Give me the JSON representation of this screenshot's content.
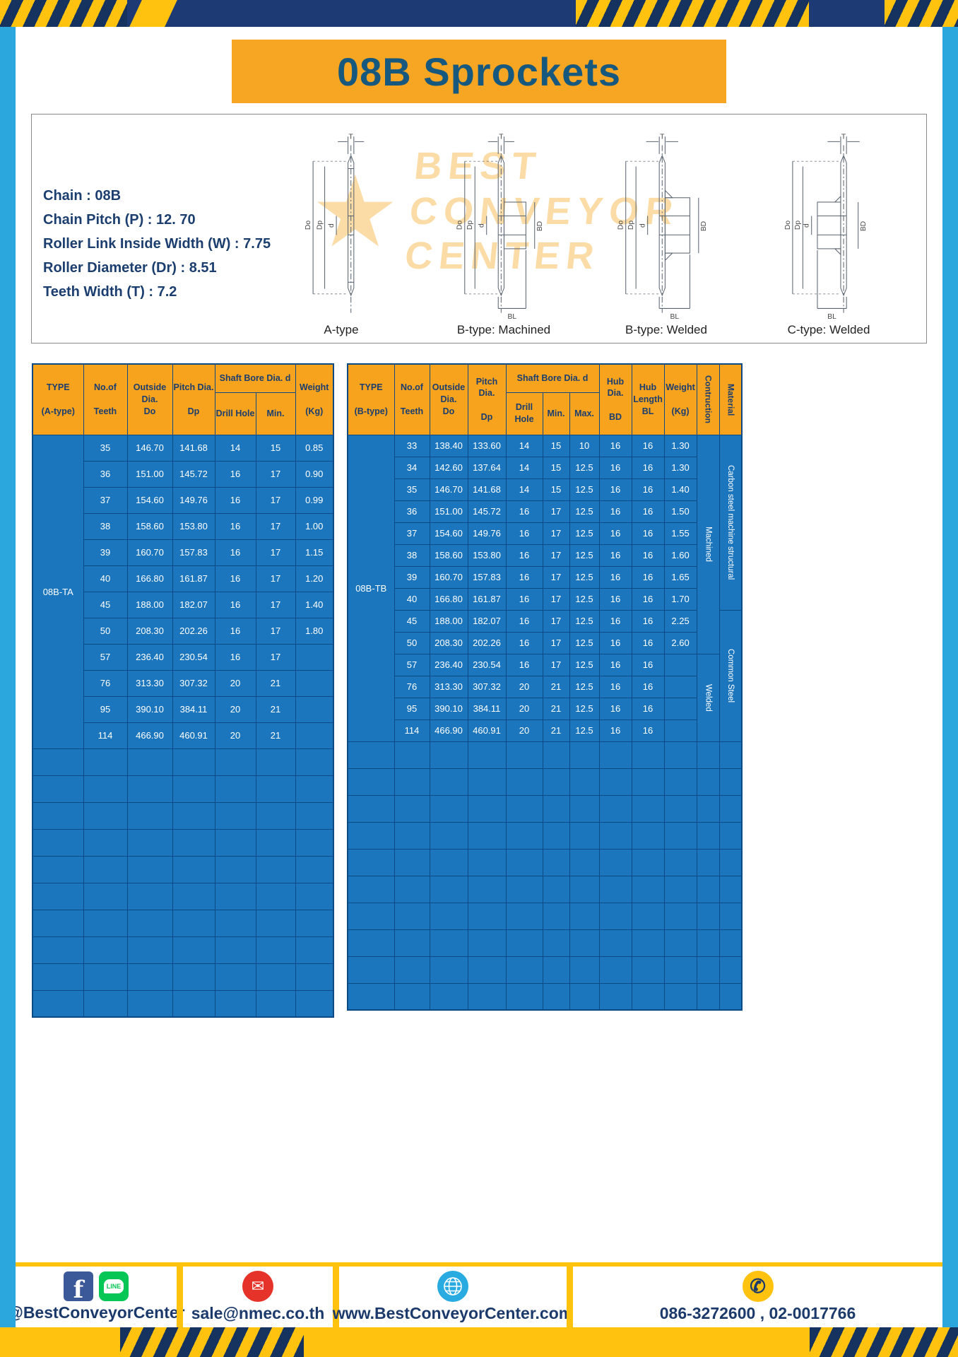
{
  "page": {
    "title": "08B Sprockets"
  },
  "specs": {
    "lines": [
      "Chain  :  08B",
      "Chain Pitch (P)  :  12. 70",
      "Roller Link Inside Width (W)  :  7.75",
      "Roller Diameter (Dr)  :  8.51",
      "Teeth Width (T)  :  7.2"
    ]
  },
  "drawings": {
    "labels": [
      "A-type",
      "B-type: Machined",
      "B-type: Welded",
      "C-type: Welded"
    ],
    "dims": {
      "t": "T",
      "outside": "Do",
      "pitch": "Dp",
      "bore": "d",
      "hub": "BD",
      "hub_len": "BL"
    },
    "watermark_lines": [
      "BEST",
      "CONVEYOR",
      "CENTER"
    ]
  },
  "icons": {
    "star": "★",
    "facebook": "f",
    "line_text": "LINE",
    "email": "✉",
    "phone": "✆"
  },
  "table_a": {
    "headers": {
      "type": "TYPE\n\n(A-type)",
      "teeth": "No.of\n\nTeeth",
      "outside": "Outside\nDia.\nDo",
      "pitch": "Pitch Dia.\n\nDp",
      "shaft_bore": "Shaft Bore Dia. d",
      "drill": "Drill Hole",
      "min": "Min.",
      "weight": "Weight\n\n(Kg)"
    },
    "type_label": "08B-TA",
    "rows": [
      {
        "teeth": "35",
        "outside": "146.70",
        "pitch": "141.68",
        "drill": "14",
        "min": "15",
        "weight": "0.85"
      },
      {
        "teeth": "36",
        "outside": "151.00",
        "pitch": "145.72",
        "drill": "16",
        "min": "17",
        "weight": "0.90"
      },
      {
        "teeth": "37",
        "outside": "154.60",
        "pitch": "149.76",
        "drill": "16",
        "min": "17",
        "weight": "0.99"
      },
      {
        "teeth": "38",
        "outside": "158.60",
        "pitch": "153.80",
        "drill": "16",
        "min": "17",
        "weight": "1.00"
      },
      {
        "teeth": "39",
        "outside": "160.70",
        "pitch": "157.83",
        "drill": "16",
        "min": "17",
        "weight": "1.15"
      },
      {
        "teeth": "40",
        "outside": "166.80",
        "pitch": "161.87",
        "drill": "16",
        "min": "17",
        "weight": "1.20"
      },
      {
        "teeth": "45",
        "outside": "188.00",
        "pitch": "182.07",
        "drill": "16",
        "min": "17",
        "weight": "1.40"
      },
      {
        "teeth": "50",
        "outside": "208.30",
        "pitch": "202.26",
        "drill": "16",
        "min": "17",
        "weight": "1.80"
      },
      {
        "teeth": "57",
        "outside": "236.40",
        "pitch": "230.54",
        "drill": "16",
        "min": "17",
        "weight": ""
      },
      {
        "teeth": "76",
        "outside": "313.30",
        "pitch": "307.32",
        "drill": "20",
        "min": "21",
        "weight": ""
      },
      {
        "teeth": "95",
        "outside": "390.10",
        "pitch": "384.11",
        "drill": "20",
        "min": "21",
        "weight": ""
      },
      {
        "teeth": "114",
        "outside": "466.90",
        "pitch": "460.91",
        "drill": "20",
        "min": "21",
        "weight": ""
      }
    ],
    "empty_rows": 10
  },
  "table_b": {
    "headers": {
      "type": "TYPE\n\n(B-type)",
      "teeth": "No.of\n\nTeeth",
      "outside": "Outside\nDia.\nDo",
      "pitch": "Pitch Dia.\n\nDp",
      "shaft_bore": "Shaft Bore Dia. d",
      "drill": "Drill Hole",
      "min": "Min.",
      "max": "Max.",
      "hub_dia": "Hub Dia.\n\nBD",
      "hub_len": "Hub\nLength\nBL",
      "weight": "Weight\n\n(Kg)",
      "contruction": "Contruction",
      "material": "Material"
    },
    "type_label": "08B-TB",
    "rows": [
      {
        "teeth": "33",
        "outside": "138.40",
        "pitch": "133.60",
        "drill": "14",
        "min": "15",
        "max": "10",
        "bd": "16",
        "bl": "16",
        "weight": "1.30"
      },
      {
        "teeth": "34",
        "outside": "142.60",
        "pitch": "137.64",
        "drill": "14",
        "min": "15",
        "max": "12.5",
        "bd": "16",
        "bl": "16",
        "weight": "1.30"
      },
      {
        "teeth": "35",
        "outside": "146.70",
        "pitch": "141.68",
        "drill": "14",
        "min": "15",
        "max": "12.5",
        "bd": "16",
        "bl": "16",
        "weight": "1.40"
      },
      {
        "teeth": "36",
        "outside": "151.00",
        "pitch": "145.72",
        "drill": "16",
        "min": "17",
        "max": "12.5",
        "bd": "16",
        "bl": "16",
        "weight": "1.50"
      },
      {
        "teeth": "37",
        "outside": "154.60",
        "pitch": "149.76",
        "drill": "16",
        "min": "17",
        "max": "12.5",
        "bd": "16",
        "bl": "16",
        "weight": "1.55"
      },
      {
        "teeth": "38",
        "outside": "158.60",
        "pitch": "153.80",
        "drill": "16",
        "min": "17",
        "max": "12.5",
        "bd": "16",
        "bl": "16",
        "weight": "1.60"
      },
      {
        "teeth": "39",
        "outside": "160.70",
        "pitch": "157.83",
        "drill": "16",
        "min": "17",
        "max": "12.5",
        "bd": "16",
        "bl": "16",
        "weight": "1.65"
      },
      {
        "teeth": "40",
        "outside": "166.80",
        "pitch": "161.87",
        "drill": "16",
        "min": "17",
        "max": "12.5",
        "bd": "16",
        "bl": "16",
        "weight": "1.70"
      },
      {
        "teeth": "45",
        "outside": "188.00",
        "pitch": "182.07",
        "drill": "16",
        "min": "17",
        "max": "12.5",
        "bd": "16",
        "bl": "16",
        "weight": "2.25"
      },
      {
        "teeth": "50",
        "outside": "208.30",
        "pitch": "202.26",
        "drill": "16",
        "min": "17",
        "max": "12.5",
        "bd": "16",
        "bl": "16",
        "weight": "2.60"
      },
      {
        "teeth": "57",
        "outside": "236.40",
        "pitch": "230.54",
        "drill": "16",
        "min": "17",
        "max": "12.5",
        "bd": "16",
        "bl": "16",
        "weight": ""
      },
      {
        "teeth": "76",
        "outside": "313.30",
        "pitch": "307.32",
        "drill": "20",
        "min": "21",
        "max": "12.5",
        "bd": "16",
        "bl": "16",
        "weight": ""
      },
      {
        "teeth": "95",
        "outside": "390.10",
        "pitch": "384.11",
        "drill": "20",
        "min": "21",
        "max": "12.5",
        "bd": "16",
        "bl": "16",
        "weight": ""
      },
      {
        "teeth": "114",
        "outside": "466.90",
        "pitch": "460.91",
        "drill": "20",
        "min": "21",
        "max": "12.5",
        "bd": "16",
        "bl": "16",
        "weight": ""
      }
    ],
    "construction_groups": [
      {
        "label": "Machined",
        "span": 10
      },
      {
        "label": "Welded",
        "span": 4
      }
    ],
    "material_groups": [
      {
        "label": "Carbon steel  machine structural",
        "span": 8
      },
      {
        "label": "Common  Steel",
        "span": 6
      }
    ],
    "empty_rows": 10
  },
  "footer": {
    "social": "@BestConveyorCenter",
    "email": "sale@nmec.co.th",
    "website": "www.BestConveyorCenter.com",
    "phone": "086-3272600 , 02-0017766"
  }
}
